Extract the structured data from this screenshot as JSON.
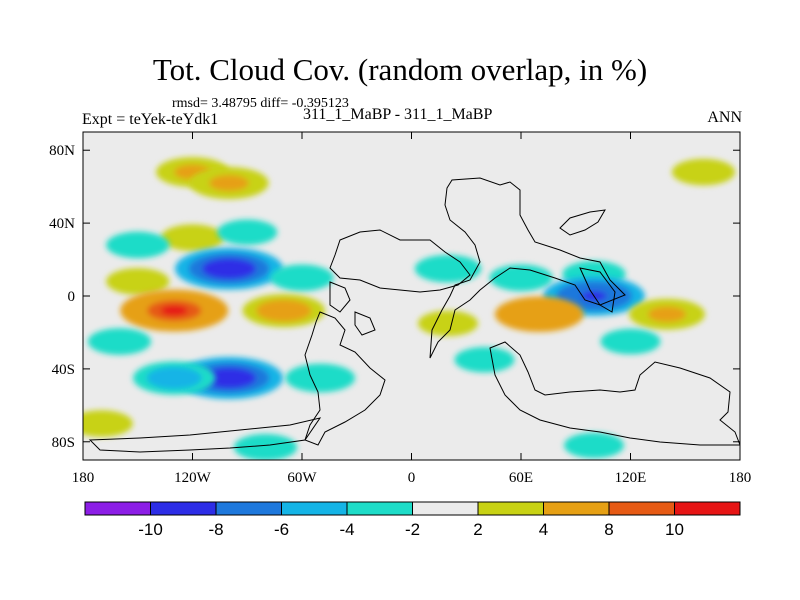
{
  "chart_data": {
    "type": "heatmap",
    "title": "Tot. Cloud Cov. (random overlap, in %)",
    "stats": "rmsd= 3.48795 diff= -0.395123",
    "left_label": "Expt = teYek-teYdk1",
    "center_label": "311_1_MaBP - 311_1_MaBP",
    "right_label": "ANN",
    "xlim": [
      -180,
      180
    ],
    "ylim": [
      -90,
      90
    ],
    "x_ticks": [
      {
        "value": -180,
        "label": "180"
      },
      {
        "value": -120,
        "label": "120W"
      },
      {
        "value": -60,
        "label": "60W"
      },
      {
        "value": 0,
        "label": "0"
      },
      {
        "value": 60,
        "label": "60E"
      },
      {
        "value": 120,
        "label": "120E"
      },
      {
        "value": 180,
        "label": "180"
      }
    ],
    "y_ticks": [
      {
        "value": 80,
        "label": "80N"
      },
      {
        "value": 40,
        "label": "40N"
      },
      {
        "value": 0,
        "label": "0"
      },
      {
        "value": -40,
        "label": "40S"
      },
      {
        "value": -80,
        "label": "80S"
      }
    ],
    "levels": [
      {
        "label": "-10"
      },
      {
        "label": "-8"
      },
      {
        "label": "-6"
      },
      {
        "label": "-4"
      },
      {
        "label": "-2"
      },
      {
        "label": "2"
      },
      {
        "label": "4"
      },
      {
        "label": "8"
      },
      {
        "label": "10"
      }
    ],
    "colors": [
      "#8c1ee6",
      "#2d2de6",
      "#1e78dc",
      "#14b4e6",
      "#1edcc8",
      "#ebebeb",
      "#c8d214",
      "#e6a014",
      "#e65a14",
      "#e61414"
    ],
    "anomalies": [
      {
        "lon": -120,
        "lat": 68,
        "value": 4.5
      },
      {
        "lon": -100,
        "lat": 62,
        "value": 5.5
      },
      {
        "lon": 160,
        "lat": 68,
        "value": 3
      },
      {
        "lon": -120,
        "lat": 32,
        "value": 3
      },
      {
        "lon": -150,
        "lat": 28,
        "value": -3
      },
      {
        "lon": -90,
        "lat": 35,
        "value": -2.5
      },
      {
        "lon": -100,
        "lat": 15,
        "value": -10
      },
      {
        "lon": -150,
        "lat": 8,
        "value": 3
      },
      {
        "lon": -60,
        "lat": 10,
        "value": -3
      },
      {
        "lon": 20,
        "lat": 15,
        "value": -3.5
      },
      {
        "lon": 60,
        "lat": 10,
        "value": -3
      },
      {
        "lon": 100,
        "lat": 12,
        "value": -3
      },
      {
        "lon": 100,
        "lat": 0,
        "value": -9
      },
      {
        "lon": -130,
        "lat": -8,
        "value": 10
      },
      {
        "lon": -70,
        "lat": -8,
        "value": 6
      },
      {
        "lon": 70,
        "lat": -10,
        "value": 7
      },
      {
        "lon": 140,
        "lat": -10,
        "value": 5
      },
      {
        "lon": 20,
        "lat": -15,
        "value": 2.5
      },
      {
        "lon": -160,
        "lat": -25,
        "value": -3
      },
      {
        "lon": -100,
        "lat": -45,
        "value": -10
      },
      {
        "lon": -130,
        "lat": -45,
        "value": -6
      },
      {
        "lon": -50,
        "lat": -45,
        "value": -4
      },
      {
        "lon": 40,
        "lat": -35,
        "value": -2.5
      },
      {
        "lon": 120,
        "lat": -25,
        "value": -2.5
      },
      {
        "lon": -170,
        "lat": -70,
        "value": 3
      },
      {
        "lon": -80,
        "lat": -83,
        "value": -3
      },
      {
        "lon": 100,
        "lat": -82,
        "value": -2.5
      }
    ]
  }
}
